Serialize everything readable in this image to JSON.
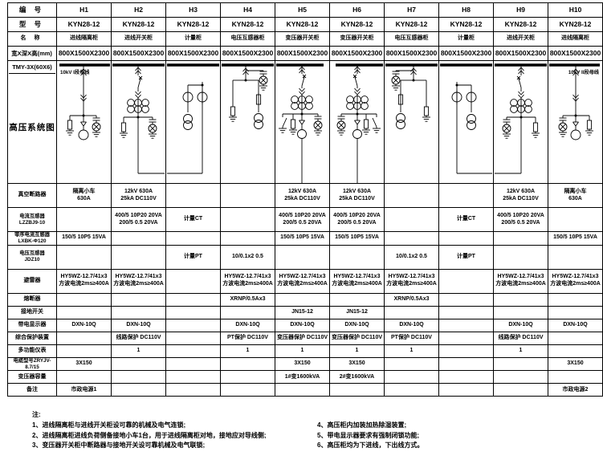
{
  "colors": {
    "ink": "#000000",
    "paper": "#ffffff"
  },
  "table": {
    "header_rows": [
      {
        "label": "编  号",
        "cells": [
          "H1",
          "H2",
          "H3",
          "H4",
          "H5",
          "H6",
          "H7",
          "H8",
          "H9",
          "H10"
        ]
      },
      {
        "label": "型  号",
        "cells": [
          "KYN28-12",
          "KYN28-12",
          "KYN28-12",
          "KYN28-12",
          "KYN28-12",
          "KYN28-12",
          "KYN28-12",
          "KYN28-12",
          "KYN28-12",
          "KYN28-12"
        ]
      },
      {
        "label": "名  称",
        "cells": [
          "进线隔离柜",
          "进线开关柜",
          "计量柜",
          "电压互感器柜",
          "变压器开关柜",
          "变压器开关柜",
          "电压互感器柜",
          "计量柜",
          "进线开关柜",
          "进线隔离柜"
        ]
      },
      {
        "label": "宽X深X高(mm)",
        "cells": [
          "800X1500X2300",
          "800X1500X2300",
          "800X1500X2300",
          "800X1500X2300",
          "800X1500X2300",
          "800X1500X2300",
          "800X1500X2300",
          "800X1500X2300",
          "800X1500X2300",
          "800X1500X2300"
        ]
      }
    ],
    "diagram_row": {
      "tmy_label": "TMY-3X(60X6)",
      "section_label": "高压系统图",
      "busbar_label_left": "10kV I段母线",
      "busbar_label_right": "10kV II段母线",
      "panel_types": [
        "incoming-isolator",
        "incoming-breaker",
        "metering",
        "pt-panel",
        "transformer-feeder",
        "transformer-feeder",
        "pt-panel",
        "metering",
        "incoming-breaker",
        "incoming-isolator"
      ]
    },
    "spec_rows": [
      {
        "label": "真空断路器",
        "cells": [
          "隔离小车\n630A",
          "12kV 630A\n25kA DC110V",
          "",
          "",
          "12kV 630A\n25kA DC110V",
          "12kV 630A\n25kA DC110V",
          "",
          "",
          "12kV 630A\n25kA DC110V",
          "隔离小车\n630A"
        ]
      },
      {
        "label": "电流互感器\nLZZBJ9-10",
        "cells": [
          "",
          "400/5 10P20 20VA\n200/5 0.5 20VA",
          "计量CT",
          "",
          "400/5 10P20 20VA\n200/5 0.5 20VA",
          "400/5 10P20 20VA\n200/5 0.5 20VA",
          "",
          "计量CT",
          "400/5 10P20 20VA\n200/5 0.5 20VA",
          ""
        ]
      },
      {
        "label": "零序电流互感器LXBK-Φ120",
        "cells": [
          "150/5 10P5 15VA",
          "",
          "",
          "",
          "150/5 10P5 15VA",
          "150/5 10P5 15VA",
          "",
          "",
          "",
          "150/5 10P5 15VA"
        ]
      },
      {
        "label": "电压互感器\nJDZ10",
        "cells": [
          "",
          "",
          "计量PT",
          "10/0.1x2 0.5",
          "",
          "",
          "10/0.1x2 0.5",
          "计量PT",
          "",
          ""
        ]
      },
      {
        "label": "避雷器",
        "cells": [
          "HY5WZ-12.7/41x3\n方波电流2ms≥400A",
          "HY5WZ-12.7/41x3\n方波电流2ms≥400A",
          "",
          "HY5WZ-12.7/41x3\n方波电流2ms≥400A",
          "HY5WZ-12.7/41x3\n方波电流2ms≥400A",
          "HY5WZ-12.7/41x3\n方波电流2ms≥400A",
          "HY5WZ-12.7/41x3\n方波电流2ms≥400A",
          "",
          "HY5WZ-12.7/41x3\n方波电流2ms≥400A",
          "HY5WZ-12.7/41x3\n方波电流2ms≥400A"
        ]
      },
      {
        "label": "熔断器",
        "cells": [
          "",
          "",
          "",
          "XRNP/0.5Ax3",
          "",
          "",
          "XRNP/0.5Ax3",
          "",
          "",
          ""
        ]
      },
      {
        "label": "接地开关",
        "cells": [
          "",
          "",
          "",
          "",
          "JN15-12",
          "JN15-12",
          "",
          "",
          "",
          ""
        ]
      },
      {
        "label": "带电显示器",
        "cells": [
          "DXN-10Q",
          "DXN-10Q",
          "",
          "DXN-10Q",
          "DXN-10Q",
          "DXN-10Q",
          "DXN-10Q",
          "",
          "DXN-10Q",
          "DXN-10Q"
        ]
      },
      {
        "label": "综合保护装置",
        "cells": [
          "",
          "线路保护 DC110V",
          "",
          "PT保护 DC110V",
          "变压器保护 DC110V",
          "变压器保护 DC110V",
          "PT保护 DC110V",
          "",
          "线路保护 DC110V",
          ""
        ]
      },
      {
        "label": "多功能仪表",
        "cells": [
          "",
          "1",
          "",
          "1",
          "1",
          "1",
          "1",
          "",
          "1",
          ""
        ]
      },
      {
        "label": "电缆型号ZRYJV-8.7/15",
        "cells": [
          "3X150",
          "",
          "",
          "",
          "3X150",
          "3X150",
          "",
          "",
          "",
          "3X150"
        ]
      },
      {
        "label": "变压器容量",
        "cells": [
          "",
          "",
          "",
          "",
          "1#变1600kVA",
          "2#变1600kVA",
          "",
          "",
          "",
          ""
        ]
      },
      {
        "label": "备注",
        "cells": [
          "市政电源1",
          "",
          "",
          "",
          "",
          "",
          "",
          "",
          "",
          "市政电源2"
        ]
      }
    ]
  },
  "notes": {
    "title": "注:",
    "left": [
      "1、进线隔离柜与进线开关柜设可靠的机械及电气连锁;",
      "2、进线隔离柜进线负荷侧备接地小车1台，用于进线隔离柜对地，接地应对导线侧;",
      "3、变压器开关柜中断路器与接地开关设可靠机械及电气联锁;"
    ],
    "right": [
      "4、高压柜内加装加热除湿装置;",
      "5、带电显示器要求有强制闭锁功能;",
      "6、高压柜均为下进线，下出线方式。"
    ]
  }
}
